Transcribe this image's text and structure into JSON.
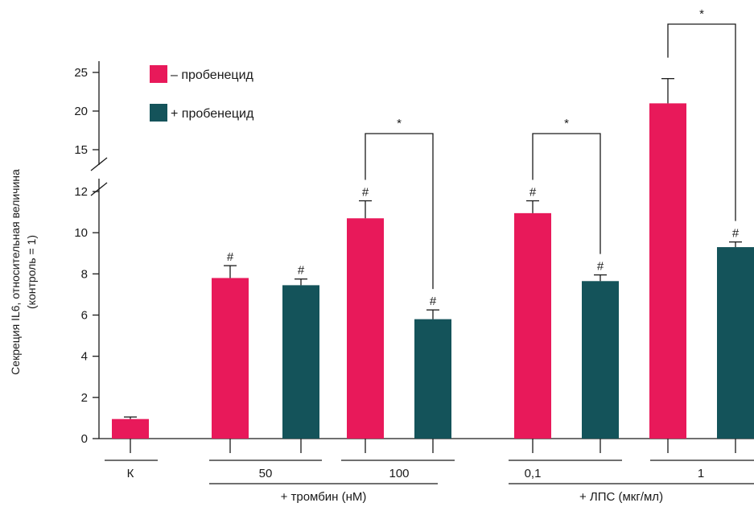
{
  "chart_data": {
    "type": "bar",
    "ylabel_lines": [
      "Секреция IL6, относительная величина",
      "(контроль = 1)"
    ],
    "y_ticks_lower": [
      "0",
      "2",
      "4",
      "6",
      "8",
      "10",
      "12"
    ],
    "y_ticks_upper": [
      "15",
      "20",
      "25"
    ],
    "ylim": [
      0,
      25
    ],
    "y_break": [
      12,
      15
    ],
    "legend": [
      {
        "label": "– пробенецид",
        "color": "#e8195a"
      },
      {
        "label": "+ пробенецид",
        "color": "#14535a"
      }
    ],
    "series": [
      {
        "name": "– пробенецид",
        "color": "#e8195a"
      },
      {
        "name": "+ пробенецид",
        "color": "#14535a"
      }
    ],
    "bars": [
      {
        "group": "К",
        "series": 0,
        "value": 0.95,
        "error": 0.1,
        "mark": ""
      },
      {
        "group": "50",
        "series": 0,
        "value": 7.8,
        "error": 0.6,
        "mark": "#"
      },
      {
        "group": "50",
        "series": 1,
        "value": 7.45,
        "error": 0.3,
        "mark": "#"
      },
      {
        "group": "100",
        "series": 0,
        "value": 10.7,
        "error": 0.85,
        "mark": "#"
      },
      {
        "group": "100",
        "series": 1,
        "value": 5.8,
        "error": 0.45,
        "mark": "#"
      },
      {
        "group": "0,1",
        "series": 0,
        "value": 10.95,
        "error": 0.6,
        "mark": "#"
      },
      {
        "group": "0,1",
        "series": 1,
        "value": 7.65,
        "error": 0.3,
        "mark": "#"
      },
      {
        "group": "1",
        "series": 0,
        "value": 21.0,
        "error": 3.2,
        "mark": ""
      },
      {
        "group": "1",
        "series": 1,
        "value": 9.3,
        "error": 0.25,
        "mark": "#"
      }
    ],
    "group_labels": [
      "К",
      "50",
      "100",
      "0,1",
      "1"
    ],
    "super_groups": [
      "+ тромбин (нМ)",
      "+ ЛПС (мкг/мл)"
    ],
    "significance_mark": "*",
    "significance_pairs": [
      {
        "group": "100"
      },
      {
        "group": "0,1"
      },
      {
        "group": "1"
      }
    ]
  }
}
